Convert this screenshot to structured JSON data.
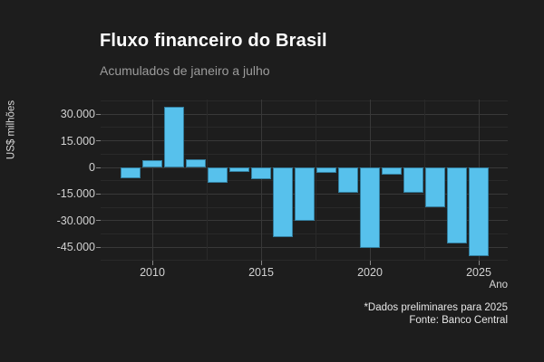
{
  "header": {
    "title": "Fluxo financeiro do Brasil",
    "subtitle": "Acumulados de janeiro a julho"
  },
  "chart_data": {
    "type": "bar",
    "title": "Fluxo financeiro do Brasil",
    "subtitle": "Acumulados de janeiro a julho",
    "xlabel": "Ano",
    "ylabel": "US$ milhões",
    "categories": [
      2009,
      2010,
      2011,
      2012,
      2013,
      2014,
      2015,
      2016,
      2017,
      2018,
      2019,
      2020,
      2021,
      2022,
      2023,
      2024,
      2025
    ],
    "values": [
      -6000,
      4200,
      34400,
      4800,
      -8500,
      -2600,
      -6500,
      -39400,
      -30000,
      -3000,
      -14400,
      -45700,
      -4000,
      -14500,
      -22600,
      -43200,
      -50000
    ],
    "y_tick_values": [
      30000,
      15000,
      0,
      -15000,
      -30000,
      -45000
    ],
    "y_tick_labels": [
      "30.000",
      "15.000",
      "0",
      "-15.000",
      "-30.000",
      "-45.000"
    ],
    "y_minor_values": [
      37500,
      22500,
      7500,
      -7500,
      -22500,
      -37500,
      -52500
    ],
    "x_tick_years": [
      2010,
      2015,
      2020,
      2025
    ],
    "x_tick_labels": [
      "2010",
      "2015",
      "2020",
      "2025"
    ],
    "x_minor_years": [
      2012.5,
      2017.5,
      2022.5
    ],
    "ylim": [
      -52500,
      37500
    ],
    "grid": true,
    "legend": false,
    "bar_color": "#57c1ec",
    "background_color": "#1d1d1d",
    "unit": "US$ milhões"
  },
  "footer": {
    "note": "*Dados preliminares para 2025",
    "source": "Fonte: Banco Central"
  }
}
